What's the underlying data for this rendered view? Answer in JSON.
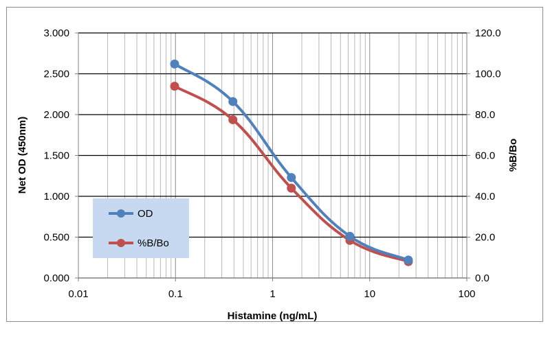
{
  "chart_data": {
    "type": "line",
    "title": "",
    "xlabel": "Histamine (ng/mL)",
    "ylabel": "Net OD (450nm)",
    "y2label": "%B/Bo",
    "x_scale": "log",
    "xlim": [
      0.01,
      100
    ],
    "ylim": [
      0,
      3
    ],
    "y2lim": [
      0,
      120
    ],
    "x_ticks": [
      "0.01",
      "0.1",
      "1",
      "10",
      "100"
    ],
    "y_ticks": [
      "0.000",
      "0.500",
      "1.000",
      "1.500",
      "2.000",
      "2.500",
      "3.000"
    ],
    "y2_ticks": [
      "0.0",
      "20.0",
      "40.0",
      "60.0",
      "80.0",
      "100.0",
      "120.0"
    ],
    "grid": true,
    "legend_position": "left",
    "series": [
      {
        "name": "OD",
        "axis": "left",
        "color": "#4f81bd",
        "x": [
          0.098,
          0.39,
          1.56,
          6.25,
          25
        ],
        "values": [
          2.62,
          2.16,
          1.23,
          0.51,
          0.22
        ]
      },
      {
        "name": "%B/Bo",
        "axis": "right",
        "color": "#c0504d",
        "x": [
          0.098,
          0.39,
          1.56,
          6.25,
          25
        ],
        "values": [
          93.9,
          77.5,
          44.0,
          18.4,
          8.0
        ]
      }
    ]
  }
}
